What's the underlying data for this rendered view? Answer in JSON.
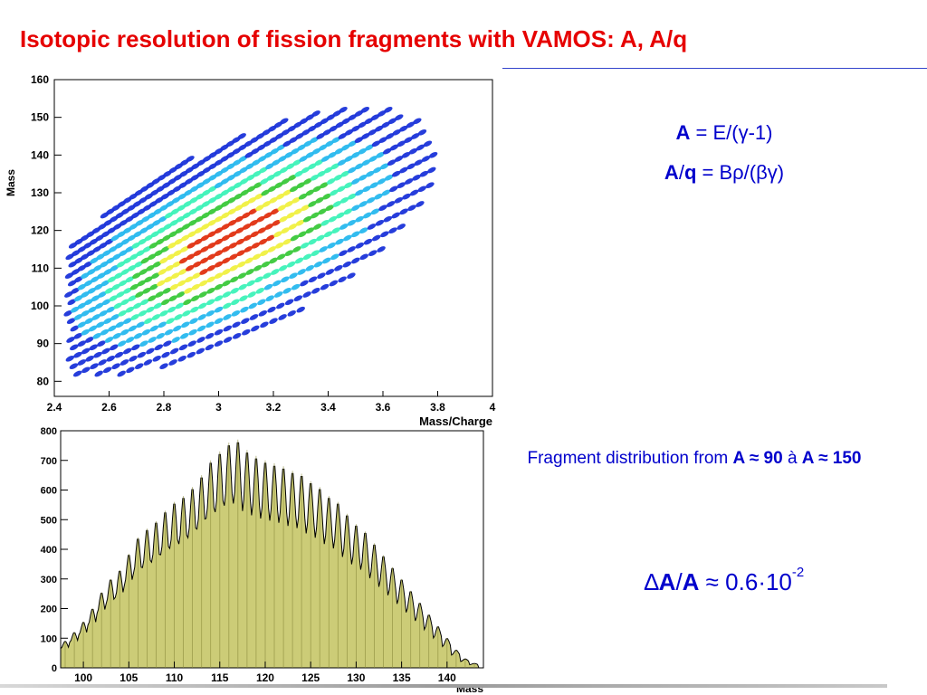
{
  "slide": {
    "title": "Isotopic resolution of fission fragments with VAMOS: A, A/q",
    "formula1": {
      "lhs": "A",
      "rhs": " = E/(γ-1)"
    },
    "formula2": {
      "lhs_a": "A",
      "lhs_slash": "/",
      "lhs_q": "q",
      "rhs": " = Bρ/(βγ)"
    },
    "note": {
      "prefix": "Fragment distribution from ",
      "from": "A ≈ 90",
      "middle": " à ",
      "to": "A ≈ 150"
    },
    "resolution": {
      "delta": "∆",
      "a1": "A",
      "slash": "/",
      "a2": "A",
      "approx": " ≈ 0.6·10",
      "exponent": "-2"
    }
  },
  "colors": {
    "title": "#e60000",
    "text": "#0000cc",
    "histfill": "#cccc77"
  },
  "chart_data": [
    {
      "type": "heatmap",
      "title": "",
      "xlabel": "Mass/Charge",
      "ylabel": "Mass",
      "xlim": [
        2.4,
        4.0
      ],
      "ylim": [
        76,
        160
      ],
      "xticks": [
        "2.4",
        "2.6",
        "2.8",
        "3",
        "3.2",
        "3.4",
        "3.6",
        "3.8",
        "4"
      ],
      "yticks": [
        "80",
        "90",
        "100",
        "110",
        "120",
        "130",
        "140",
        "150",
        "160"
      ],
      "colormap": [
        "#1a33d9",
        "#27b8ee",
        "#3df2b8",
        "#3ac83a",
        "#f0f040",
        "#e03010"
      ],
      "peak": {
        "x": 3.05,
        "y": 117
      },
      "mass_range": [
        82,
        155
      ]
    },
    {
      "type": "area",
      "title": "",
      "xlabel": "Mass",
      "ylabel": "",
      "xlim": [
        97.5,
        144
      ],
      "ylim": [
        0,
        800
      ],
      "xticks": [
        "100",
        "105",
        "110",
        "115",
        "120",
        "125",
        "130",
        "135",
        "140"
      ],
      "yticks": [
        "0",
        "100",
        "200",
        "300",
        "400",
        "500",
        "600",
        "700",
        "800"
      ],
      "x": [
        98,
        99,
        100,
        101,
        102,
        103,
        104,
        105,
        106,
        107,
        108,
        109,
        110,
        111,
        112,
        113,
        114,
        115,
        116,
        117,
        118,
        119,
        120,
        121,
        122,
        123,
        124,
        125,
        126,
        127,
        128,
        129,
        130,
        131,
        132,
        133,
        134,
        135,
        136,
        137,
        138,
        139,
        140,
        141,
        142,
        143
      ],
      "values": [
        90,
        120,
        155,
        200,
        255,
        300,
        330,
        385,
        440,
        470,
        495,
        530,
        560,
        580,
        610,
        650,
        700,
        730,
        760,
        770,
        735,
        715,
        700,
        690,
        680,
        665,
        655,
        630,
        610,
        580,
        560,
        520,
        485,
        460,
        420,
        380,
        340,
        300,
        260,
        220,
        180,
        140,
        100,
        60,
        30,
        15
      ]
    }
  ]
}
